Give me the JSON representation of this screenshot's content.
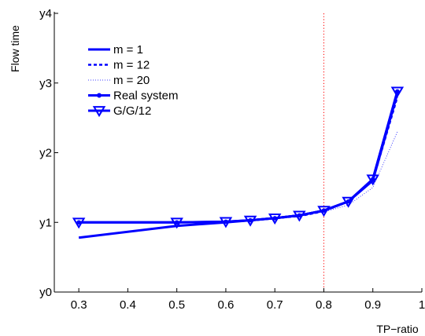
{
  "chart_data": {
    "type": "line",
    "xlabel": "TP−ratio",
    "ylabel": "Flow time",
    "xlim": [
      0.25,
      1.0
    ],
    "ylim": [
      0,
      4
    ],
    "xticks": [
      0.3,
      0.4,
      0.5,
      0.6,
      0.7,
      0.8,
      0.9,
      1
    ],
    "xtick_labels": [
      "0.3",
      "0.4",
      "0.5",
      "0.6",
      "0.7",
      "0.8",
      "0.9",
      "1"
    ],
    "yticks": [
      0,
      1,
      2,
      3,
      4
    ],
    "ytick_labels": [
      "y0",
      "y1",
      "y2",
      "y3",
      "y4"
    ],
    "grid": false,
    "legend_position": "top-left",
    "colors": {
      "series": "#0000ff",
      "reference_line": "#ff0000",
      "axes": "#000000"
    },
    "reference_line": {
      "x": 0.8,
      "style": "dotted"
    },
    "series": [
      {
        "name": "m = 1",
        "style": "solid",
        "x": [
          0.3,
          0.5,
          0.6,
          0.65,
          0.7,
          0.75,
          0.8,
          0.85,
          0.9,
          0.95
        ],
        "y": [
          0.78,
          0.95,
          1.0,
          1.03,
          1.06,
          1.1,
          1.17,
          1.3,
          1.6,
          2.85
        ]
      },
      {
        "name": "m = 12",
        "style": "dashed",
        "x": [
          0.3,
          0.5,
          0.6,
          0.65,
          0.7,
          0.75,
          0.8,
          0.85,
          0.9,
          0.95
        ],
        "y": [
          1.0,
          1.0,
          1.01,
          1.03,
          1.06,
          1.09,
          1.16,
          1.3,
          1.6,
          2.8
        ]
      },
      {
        "name": "m = 20",
        "style": "dotted",
        "x": [
          0.3,
          0.5,
          0.6,
          0.65,
          0.7,
          0.75,
          0.8,
          0.85,
          0.9,
          0.95
        ],
        "y": [
          1.0,
          1.0,
          1.01,
          1.03,
          1.06,
          1.09,
          1.15,
          1.25,
          1.5,
          2.3
        ]
      },
      {
        "name": "Real system",
        "style": "solid-dot",
        "x": [
          0.3,
          0.5,
          0.6,
          0.65,
          0.7,
          0.75,
          0.8,
          0.85,
          0.9,
          0.95
        ],
        "y": [
          1.0,
          1.0,
          1.01,
          1.03,
          1.06,
          1.1,
          1.17,
          1.3,
          1.62,
          2.88
        ]
      },
      {
        "name": "G/G/12",
        "style": "solid-triangle",
        "x": [
          0.3,
          0.5,
          0.6,
          0.65,
          0.7,
          0.75,
          0.8,
          0.85,
          0.9,
          0.95
        ],
        "y": [
          1.0,
          1.0,
          1.01,
          1.03,
          1.06,
          1.1,
          1.17,
          1.3,
          1.62,
          2.88
        ]
      }
    ]
  }
}
